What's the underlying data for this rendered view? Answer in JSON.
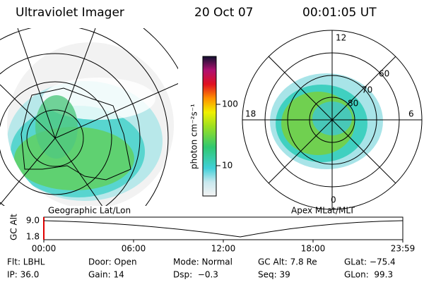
{
  "header": {
    "title": "Ultraviolet Imager",
    "date": "20 Oct 07",
    "time": "00:01:05 UT"
  },
  "left_panel": {
    "caption": "Geographic Lat/Lon"
  },
  "colorbar": {
    "label": "photon cm⁻²s⁻¹",
    "ticks": [
      "100",
      "10"
    ]
  },
  "right_panel": {
    "caption": "Apex MLat/MLT",
    "mlt_labels": [
      "12",
      "18",
      "6",
      "0"
    ],
    "lat_labels": [
      "60",
      "70",
      "80"
    ]
  },
  "altitude": {
    "axis_label": "GC Alt",
    "yticks": [
      "9.0",
      "1.8"
    ],
    "xticks": [
      "00:00",
      "06:00",
      "12:00",
      "18:00",
      "23:59"
    ]
  },
  "footer": {
    "rows": [
      [
        "Flt: LBHL",
        "Door: Open",
        "Mode: Normal",
        "GC Alt: 7.8 Re",
        "GLat: −75.4"
      ],
      [
        "IP: 36.0",
        "Gain: 14",
        "Dsp:  −0.3",
        "Seq: 39",
        "GLon:  99.3"
      ]
    ]
  }
}
